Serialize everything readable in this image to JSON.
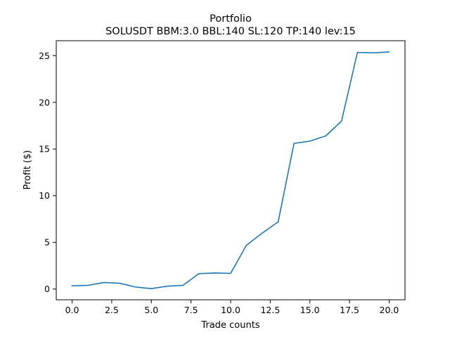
{
  "chart_data": {
    "type": "line",
    "title": "Portfolio",
    "subtitle": "SOLUSDT BBM:3.0 BBL:140 SL:120 TP:140 lev:15",
    "xlabel": "Trade counts",
    "ylabel": "Profit ($)",
    "xlim": [
      -1.0,
      21.0
    ],
    "ylim": [
      -1.15,
      26.6
    ],
    "x_ticks": [
      0.0,
      2.5,
      5.0,
      7.5,
      10.0,
      12.5,
      15.0,
      17.5,
      20.0
    ],
    "x_tick_labels": [
      "0.0",
      "2.5",
      "5.0",
      "7.5",
      "10.0",
      "12.5",
      "15.0",
      "17.5",
      "20.0"
    ],
    "y_ticks": [
      0,
      5,
      10,
      15,
      20,
      25
    ],
    "y_tick_labels": [
      "0",
      "5",
      "10",
      "15",
      "20",
      "25"
    ],
    "grid": false,
    "series": [
      {
        "color": "#1f77b4",
        "x": [
          0,
          1,
          2,
          3,
          4,
          5,
          6,
          7,
          8,
          9,
          10,
          11,
          12,
          13,
          14,
          15,
          16,
          17,
          18,
          19,
          20
        ],
        "values": [
          0.35,
          0.4,
          0.7,
          0.62,
          0.22,
          0.05,
          0.3,
          0.4,
          1.65,
          1.72,
          1.68,
          4.7,
          6.0,
          7.2,
          15.6,
          15.85,
          16.4,
          18.0,
          25.35,
          25.3,
          25.4
        ]
      }
    ]
  }
}
